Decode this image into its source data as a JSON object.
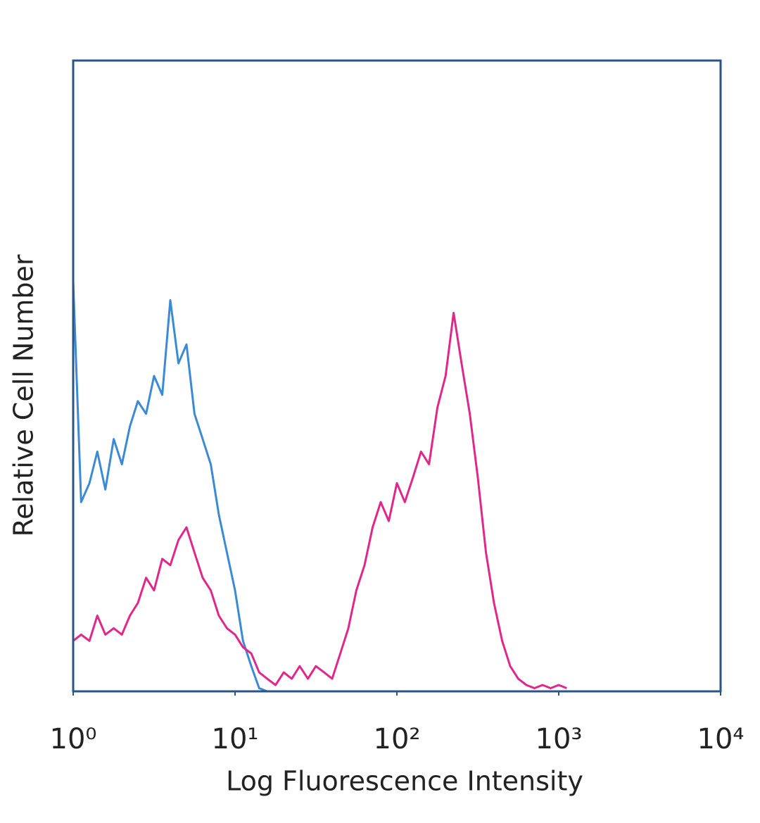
{
  "chart_data": {
    "type": "line",
    "x_label": "Log Fluorescence Intensity",
    "y_label": "Relative Cell Number",
    "log_x": true,
    "xlim": [
      1,
      10000
    ],
    "xticks": [
      {
        "value": 1,
        "label": "10⁰"
      },
      {
        "value": 10,
        "label": "10¹"
      },
      {
        "value": 100,
        "label": "10²"
      },
      {
        "value": 1000,
        "label": "10³"
      },
      {
        "value": 10000,
        "label": "10⁴"
      }
    ],
    "ylim": [
      0,
      100
    ],
    "frame_color": "#2b5584",
    "x": [
      1,
      1.12,
      1.26,
      1.41,
      1.58,
      1.78,
      2,
      2.24,
      2.51,
      2.82,
      3.16,
      3.55,
      3.98,
      4.47,
      5.01,
      5.62,
      6.31,
      7.08,
      7.94,
      8.91,
      10,
      11.2,
      12.6,
      14.1,
      15.8,
      17.8,
      20,
      22.4,
      25.1,
      28.2,
      31.6,
      35.5,
      39.8,
      44.7,
      50.1,
      56.2,
      63.1,
      70.8,
      79.4,
      89.1,
      100,
      112,
      126,
      141,
      158,
      178,
      200,
      224,
      251,
      282,
      316,
      355,
      398,
      447,
      501,
      562,
      631,
      708,
      794,
      891,
      1000,
      1120
    ],
    "series": [
      {
        "color": "#3a8ad6",
        "values": [
          65,
          30,
          33,
          38,
          32,
          40,
          36,
          42,
          46,
          44,
          50,
          47,
          62,
          52,
          55,
          44,
          40,
          36,
          28,
          22,
          16,
          8,
          4,
          0.5,
          0,
          0,
          0,
          0,
          0,
          0,
          0,
          0,
          0,
          null,
          null,
          null,
          null,
          null,
          null,
          null,
          null,
          null,
          null,
          null,
          null,
          null,
          null,
          null,
          null,
          null,
          null,
          null,
          null,
          null,
          null,
          null,
          null,
          null,
          null,
          null,
          null,
          null
        ]
      },
      {
        "color": "#e0288a",
        "values": [
          8,
          9,
          8,
          12,
          9,
          10,
          9,
          12,
          14,
          18,
          16,
          21,
          20,
          24,
          26,
          22,
          18,
          16,
          12,
          10,
          9,
          7,
          6,
          3,
          2,
          1,
          3,
          2,
          4,
          2,
          4,
          3,
          2,
          6,
          10,
          16,
          20,
          26,
          30,
          27,
          33,
          30,
          34,
          38,
          36,
          45,
          50,
          60,
          52,
          44,
          34,
          22,
          14,
          8,
          4,
          2,
          1,
          0.5,
          1,
          0.5,
          1,
          0.5
        ]
      }
    ]
  }
}
